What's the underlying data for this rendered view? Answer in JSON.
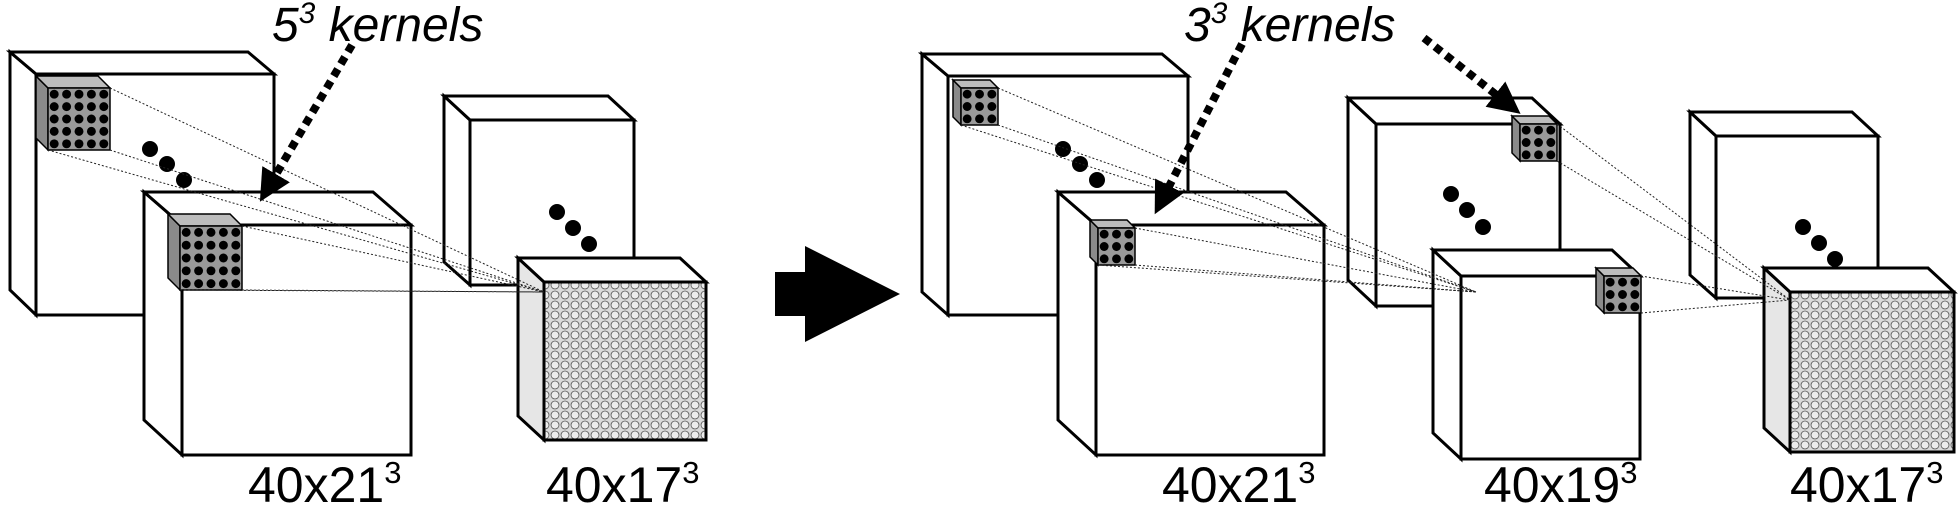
{
  "left": {
    "kernel_label": {
      "base": "5",
      "exp": "3",
      "text": "kernels"
    },
    "sizes": [
      {
        "base": "40x21",
        "exp": "3"
      },
      {
        "base": "40x17",
        "exp": "3"
      }
    ]
  },
  "right": {
    "kernel_label": {
      "base": "3",
      "exp": "3",
      "text": "kernels"
    },
    "sizes": [
      {
        "base": "40x21",
        "exp": "3"
      },
      {
        "base": "40x19",
        "exp": "3"
      },
      {
        "base": "40x17",
        "exp": "3"
      }
    ]
  },
  "colors": {
    "stroke": "#000000",
    "face": "#ffffff",
    "kernel": "#9a9a9a",
    "output_fill": "#d9d9d9"
  }
}
